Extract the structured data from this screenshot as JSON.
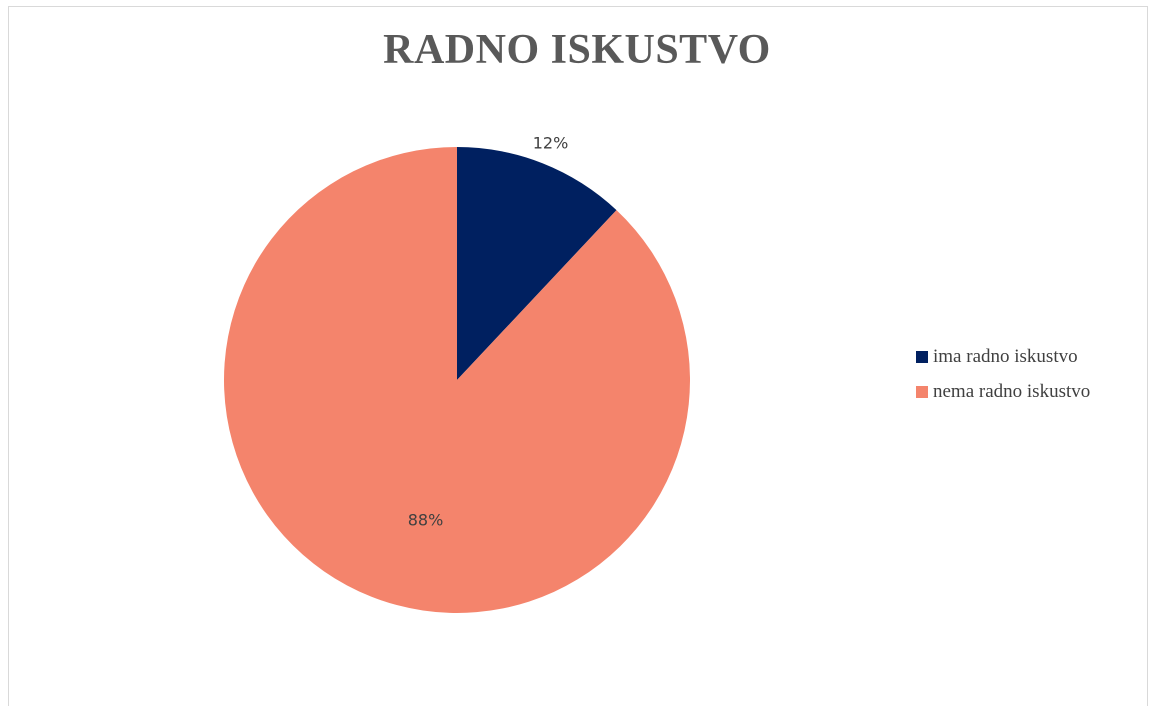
{
  "chart_data": {
    "type": "pie",
    "title": "RADNO ISKUSTVO",
    "categories": [
      "ima radno iskustvo",
      "nema radno iskustvo"
    ],
    "values": [
      12,
      88
    ],
    "data_labels": [
      "12%",
      "88%"
    ],
    "colors": [
      "#002060",
      "#F4846C"
    ],
    "legend_position": "right"
  }
}
